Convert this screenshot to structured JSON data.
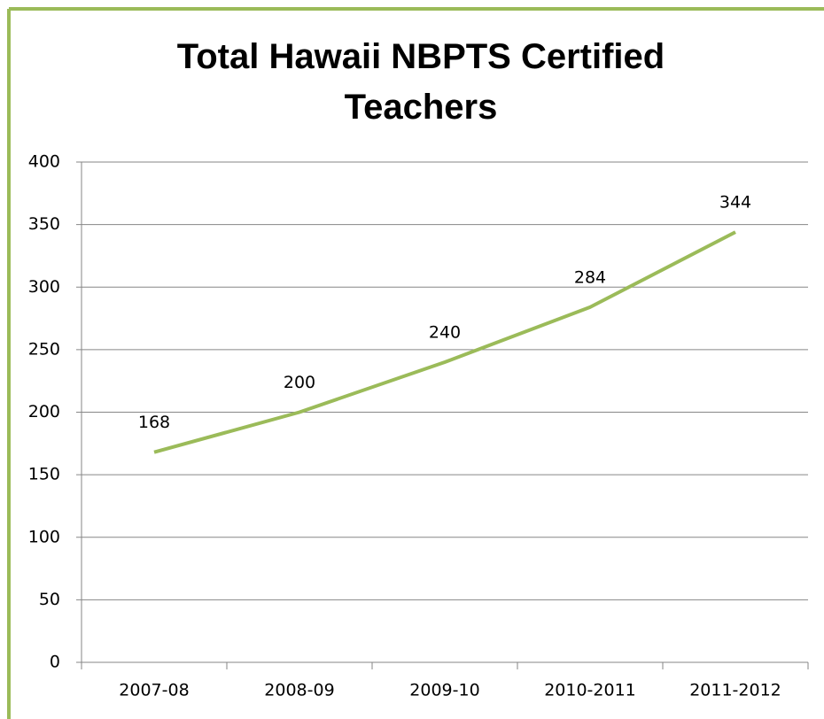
{
  "chart_data": {
    "type": "line",
    "title": "Total Hawaii NBPTS Certified Teachers",
    "categories": [
      "2007-08",
      "2008-09",
      "2009-10",
      "2010-2011",
      "2011-2012"
    ],
    "values": [
      168,
      200,
      240,
      284,
      344
    ],
    "color": "#9bbb59",
    "ylim": [
      0,
      400
    ],
    "yticks": [
      0,
      50,
      100,
      150,
      200,
      250,
      300,
      350,
      400
    ],
    "grid": true
  }
}
